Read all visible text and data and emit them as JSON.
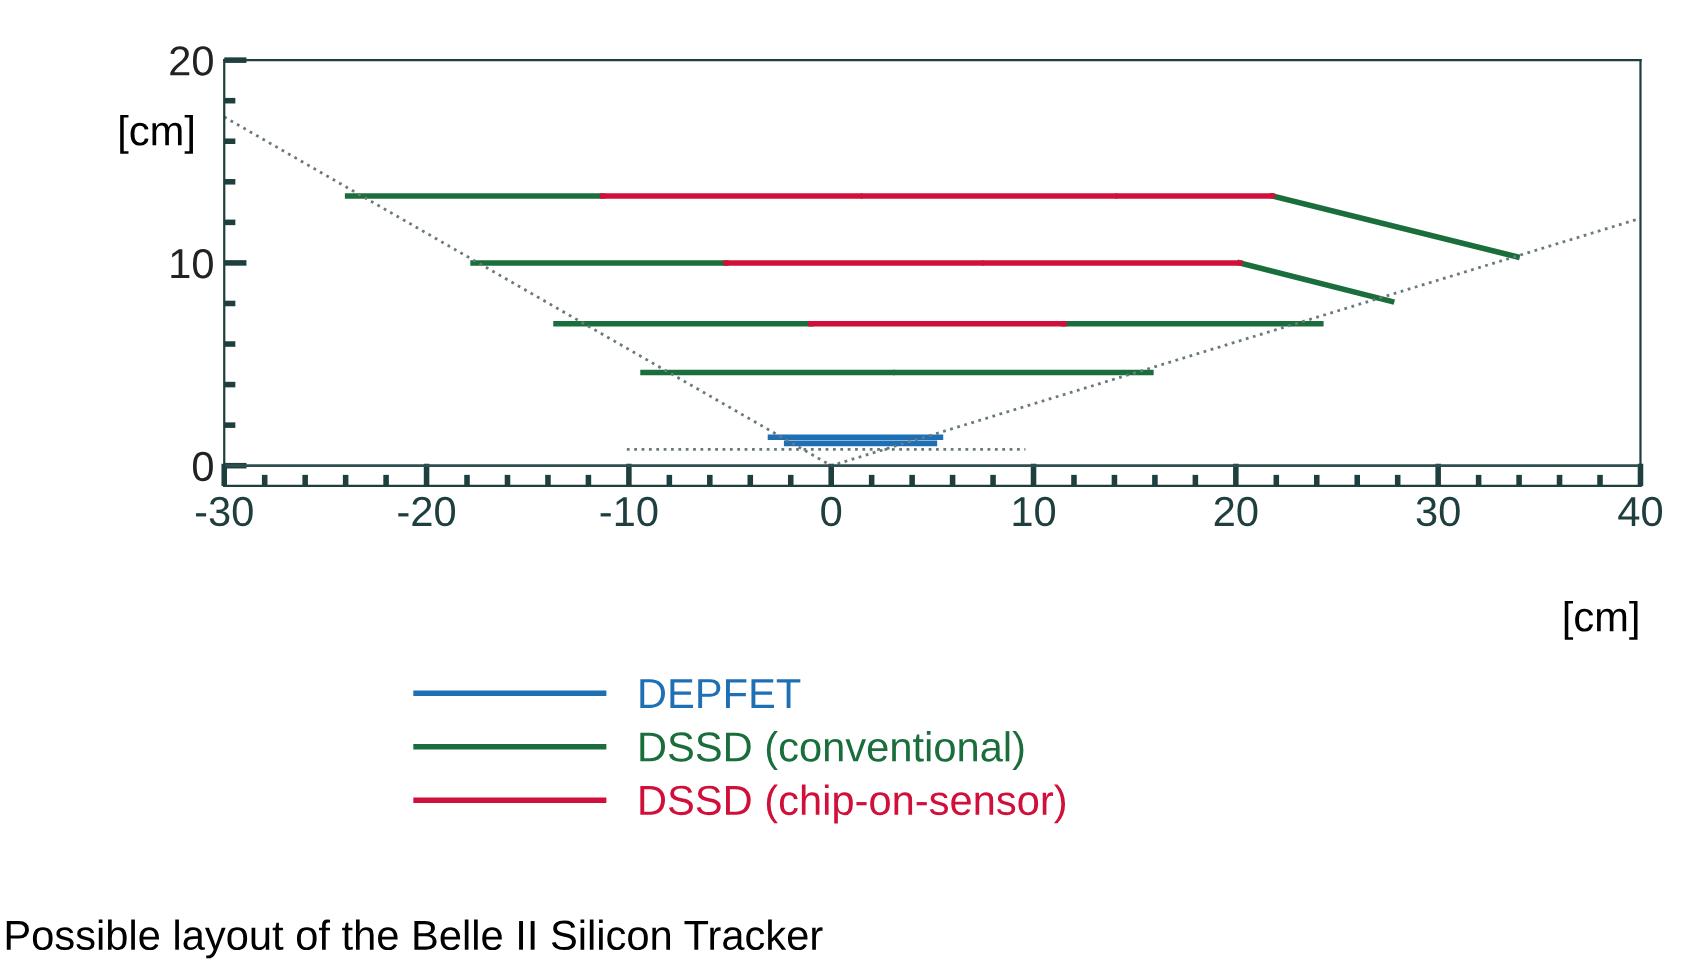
{
  "chart_data": {
    "type": "line",
    "xlabel": "[cm]",
    "ylabel": "[cm]",
    "xlim": [
      -30,
      40
    ],
    "xticks": [
      -30,
      -20,
      -10,
      0,
      10,
      20,
      30,
      40
    ],
    "ylim": [
      -1,
      20
    ],
    "yticks": [
      0,
      10,
      20
    ],
    "grid": false,
    "legend": "bottom",
    "marker": "none",
    "ref_lines": [
      {
        "axis": "y",
        "value": 0,
        "color": "#2f4f4f"
      }
    ],
    "annotations": [
      "Possible layout of the Belle II Silicon Tracker"
    ],
    "series": [
      {
        "name": "DEPFET",
        "color": "#1f6fb5",
        "x": [
          -3.0,
          5.4
        ],
        "values": [
          1.4,
          1.4
        ]
      },
      {
        "color": "#1f6fb5",
        "x": [
          -2.2,
          5.1
        ],
        "values": [
          1.1,
          1.1
        ]
      },
      {
        "name": "DSSD (conventional)",
        "color": "#1a6e3c",
        "x": [
          -9.3,
          3.0
        ],
        "values": [
          4.6,
          4.6
        ]
      },
      {
        "color": "#1a6e3c",
        "x": [
          3.2,
          15.8
        ],
        "values": [
          4.6,
          4.6
        ]
      },
      {
        "color": "#1a6e3c",
        "x": [
          -13.6,
          -1.0
        ],
        "values": [
          7.0,
          7.0
        ]
      },
      {
        "color": "#1a6e3c",
        "x": [
          11.5,
          24.2
        ],
        "values": [
          7.0,
          7.0
        ]
      },
      {
        "color": "#1a6e3c",
        "x": [
          -17.7,
          -5.2
        ],
        "values": [
          10.0,
          10.0
        ]
      },
      {
        "color": "#1a6e3c",
        "x": [
          20.2,
          27.7
        ],
        "values": [
          10.0,
          8.1
        ]
      },
      {
        "color": "#1a6e3c",
        "x": [
          -23.9,
          -11.3
        ],
        "values": [
          13.3,
          13.3
        ]
      },
      {
        "color": "#1a6e3c",
        "x": [
          21.8,
          33.9
        ],
        "values": [
          13.3,
          10.3
        ]
      },
      {
        "name": "DSSD (chip-on-sensor)",
        "color": "#d0103a",
        "x": [
          -1.0,
          11.5
        ],
        "values": [
          7.0,
          7.0
        ]
      },
      {
        "color": "#d0103a",
        "x": [
          -5.2,
          7.4
        ],
        "values": [
          10.0,
          10.0
        ]
      },
      {
        "color": "#d0103a",
        "x": [
          7.6,
          20.2
        ],
        "values": [
          10.0,
          10.0
        ]
      },
      {
        "color": "#d0103a",
        "x": [
          -11.3,
          1.4
        ],
        "values": [
          13.3,
          13.3
        ]
      },
      {
        "color": "#d0103a",
        "x": [
          1.6,
          14.0
        ],
        "values": [
          13.3,
          13.3
        ]
      },
      {
        "color": "#d0103a",
        "x": [
          14.2,
          21.8
        ],
        "values": [
          13.3,
          13.3
        ]
      },
      {
        "color": "#6a7a7a",
        "line_style": "dotted",
        "x": [
          -30,
          0,
          40
        ],
        "values": [
          17.2,
          0,
          12.2
        ]
      },
      {
        "color": "#6a7a7a",
        "line_style": "dotted",
        "x": [
          -10.1,
          9.6
        ],
        "values": [
          0.8,
          0.8
        ]
      }
    ]
  }
}
